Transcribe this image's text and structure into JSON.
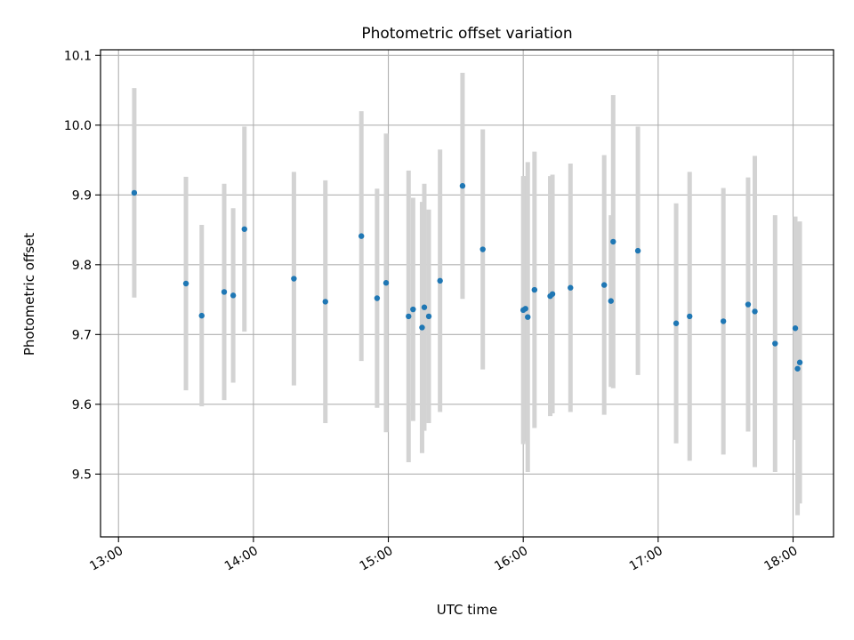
{
  "chart_data": {
    "type": "scatter",
    "title": "Photometric offset variation",
    "xlabel": "UTC time",
    "ylabel": "Photometric offset",
    "grid": true,
    "x_ticks": [
      "13:00",
      "14:00",
      "15:00",
      "16:00",
      "17:00",
      "18:00"
    ],
    "y_ticks": [
      9.5,
      9.6,
      9.7,
      9.8,
      9.9,
      10.0,
      10.1
    ],
    "xlim": [
      "12:52",
      "18:18"
    ],
    "ylim": [
      9.41,
      10.108
    ],
    "marker_color": "#1f77b4",
    "errorbar_color": "#d3d3d3",
    "points": [
      {
        "t": "13:07",
        "y": 9.903,
        "yerr": 0.15
      },
      {
        "t": "13:30",
        "y": 9.773,
        "yerr": 0.153
      },
      {
        "t": "13:37",
        "y": 9.727,
        "yerr": 0.13
      },
      {
        "t": "13:47",
        "y": 9.761,
        "yerr": 0.155
      },
      {
        "t": "13:51",
        "y": 9.756,
        "yerr": 0.125
      },
      {
        "t": "13:56",
        "y": 9.851,
        "yerr": 0.147
      },
      {
        "t": "14:18",
        "y": 9.78,
        "yerr": 0.153
      },
      {
        "t": "14:32",
        "y": 9.747,
        "yerr": 0.174
      },
      {
        "t": "14:48",
        "y": 9.841,
        "yerr": 0.179
      },
      {
        "t": "14:55",
        "y": 9.752,
        "yerr": 0.157
      },
      {
        "t": "14:59",
        "y": 9.774,
        "yerr": 0.214
      },
      {
        "t": "15:09",
        "y": 9.726,
        "yerr": 0.209
      },
      {
        "t": "15:11",
        "y": 9.736,
        "yerr": 0.16
      },
      {
        "t": "15:15",
        "y": 9.71,
        "yerr": 0.18
      },
      {
        "t": "15:16",
        "y": 9.739,
        "yerr": 0.177
      },
      {
        "t": "15:18",
        "y": 9.726,
        "yerr": 0.153
      },
      {
        "t": "15:23",
        "y": 9.777,
        "yerr": 0.188
      },
      {
        "t": "15:33",
        "y": 9.913,
        "yerr": 0.162
      },
      {
        "t": "15:42",
        "y": 9.822,
        "yerr": 0.172
      },
      {
        "t": "16:00",
        "y": 9.735,
        "yerr": 0.192
      },
      {
        "t": "16:01",
        "y": 9.737,
        "yerr": 0.19
      },
      {
        "t": "16:02",
        "y": 9.725,
        "yerr": 0.222
      },
      {
        "t": "16:05",
        "y": 9.764,
        "yerr": 0.198
      },
      {
        "t": "16:12",
        "y": 9.755,
        "yerr": 0.172
      },
      {
        "t": "16:13",
        "y": 9.758,
        "yerr": 0.171
      },
      {
        "t": "16:21",
        "y": 9.767,
        "yerr": 0.178
      },
      {
        "t": "16:36",
        "y": 9.771,
        "yerr": 0.186
      },
      {
        "t": "16:39",
        "y": 9.748,
        "yerr": 0.123
      },
      {
        "t": "16:40",
        "y": 9.833,
        "yerr": 0.21
      },
      {
        "t": "16:51",
        "y": 9.82,
        "yerr": 0.178
      },
      {
        "t": "17:08",
        "y": 9.716,
        "yerr": 0.172
      },
      {
        "t": "17:14",
        "y": 9.726,
        "yerr": 0.207
      },
      {
        "t": "17:29",
        "y": 9.719,
        "yerr": 0.191
      },
      {
        "t": "17:40",
        "y": 9.743,
        "yerr": 0.182
      },
      {
        "t": "17:43",
        "y": 9.733,
        "yerr": 0.223
      },
      {
        "t": "17:52",
        "y": 9.687,
        "yerr": 0.184
      },
      {
        "t": "18:01",
        "y": 9.709,
        "yerr": 0.16
      },
      {
        "t": "18:02",
        "y": 9.651,
        "yerr": 0.21
      },
      {
        "t": "18:03",
        "y": 9.66,
        "yerr": 0.202
      }
    ]
  }
}
